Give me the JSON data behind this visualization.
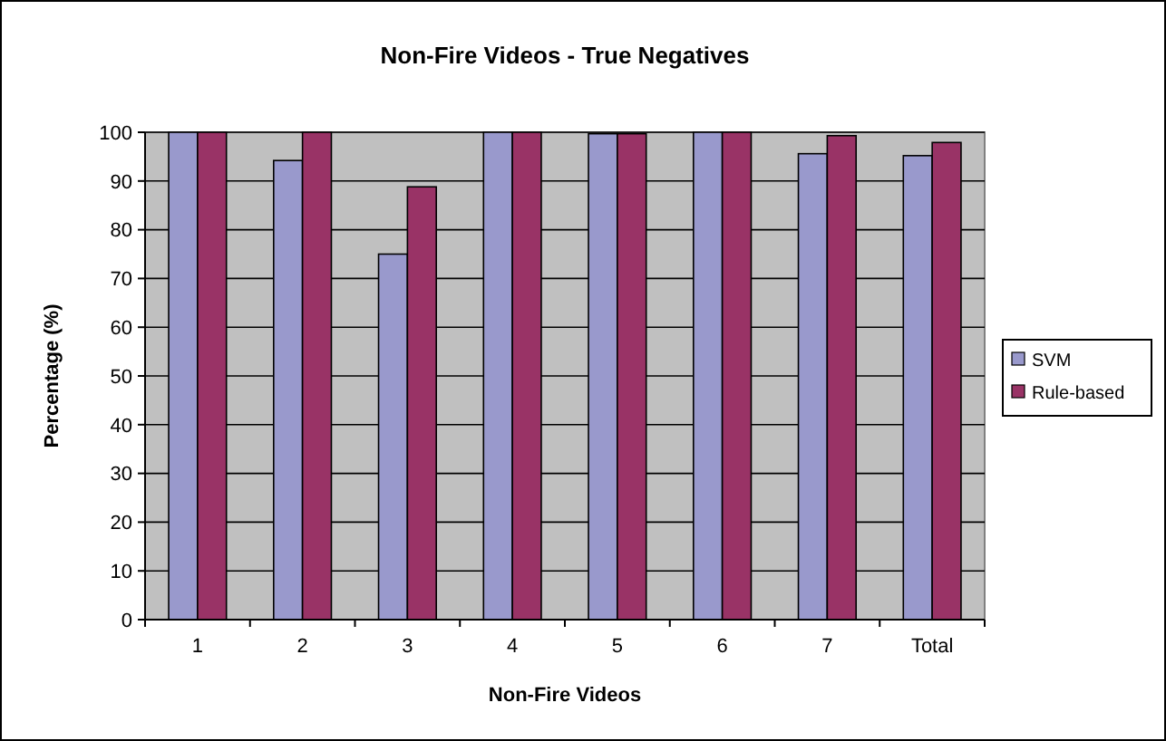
{
  "chart_data": {
    "type": "bar",
    "title": "Non-Fire Videos - True Negatives",
    "xlabel": "Non-Fire Videos",
    "ylabel": "Percentage (%)",
    "categories": [
      "1",
      "2",
      "3",
      "4",
      "5",
      "6",
      "7",
      "Total"
    ],
    "series": [
      {
        "name": "SVM",
        "color": "#9999cc",
        "values": [
          100,
          94.2,
          75,
          100,
          99.7,
          100,
          95.6,
          95.2
        ]
      },
      {
        "name": "Rule-based",
        "color": "#993366",
        "values": [
          100,
          100,
          88.8,
          100,
          99.7,
          100,
          99.3,
          97.9
        ]
      }
    ],
    "ylim": [
      0,
      100
    ],
    "yticks": [
      0,
      10,
      20,
      30,
      40,
      50,
      60,
      70,
      80,
      90,
      100
    ],
    "grid": "y",
    "legend": "right"
  }
}
